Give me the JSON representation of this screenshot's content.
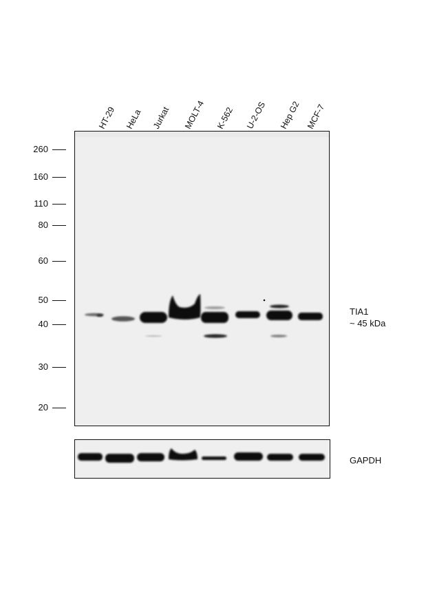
{
  "lanes": [
    "HT-29",
    "HeLa",
    "Jurkat",
    "MOLT-4",
    "K-562",
    "U-2-OS",
    "Hep G2",
    "MCF-7"
  ],
  "mw_markers": [
    "260",
    "160",
    "110",
    "80",
    "60",
    "50",
    "40",
    "30",
    "20"
  ],
  "target": {
    "name": "TIA1",
    "size": "~ 45 kDa"
  },
  "loading_control": {
    "name": "GAPDH"
  },
  "colors": {
    "membrane": "#efefef",
    "band": "#0a0a0a",
    "border": "#111111"
  }
}
